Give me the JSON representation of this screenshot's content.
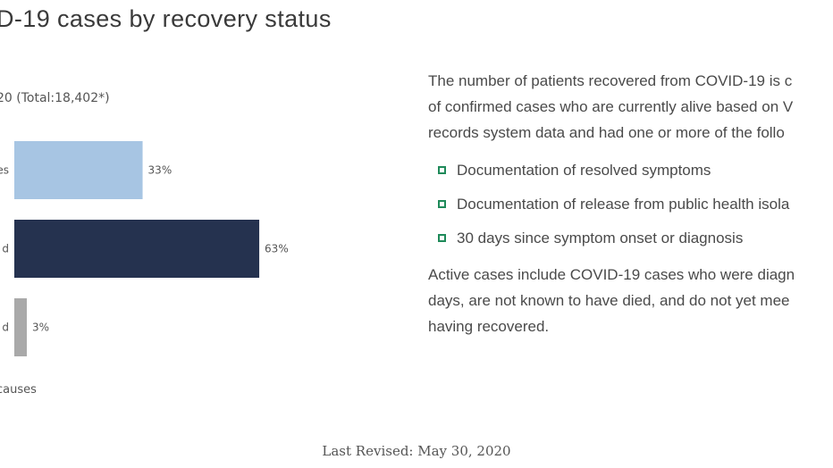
{
  "page": {
    "title": "D-19 cases by recovery status",
    "last_revised": "Last Revised: May 30, 2020"
  },
  "description": {
    "intro_lines": [
      "The number of patients recovered from COVID-19 is c",
      "of confirmed cases who are currently alive based on V",
      "records system data and had one or more of the follo"
    ],
    "criteria": [
      "Documentation of resolved symptoms",
      "Documentation of release from public health isola",
      "30 days since symptom onset or diagnosis"
    ],
    "active_lines": [
      "Active cases include COVID-19 cases who were diagn",
      "days, are not known to have died, and do not yet mee",
      "having recovered."
    ],
    "bullet_icon": "square-bullet-icon",
    "bullet_color": "#1f8a5a"
  },
  "chart_data": {
    "type": "bar",
    "orientation": "horizontal",
    "title": "",
    "subtitle": "20 (Total:18,402*)",
    "xlabel": "causes",
    "categories": [
      "es",
      "d",
      "d"
    ],
    "values": [
      33,
      63,
      3
    ],
    "value_labels": [
      "33%",
      "63%",
      "3%"
    ],
    "colors": [
      "#a7c5e3",
      "#25324f",
      "#a9a9a9"
    ],
    "xlim": [
      0,
      100
    ],
    "grid": false
  }
}
